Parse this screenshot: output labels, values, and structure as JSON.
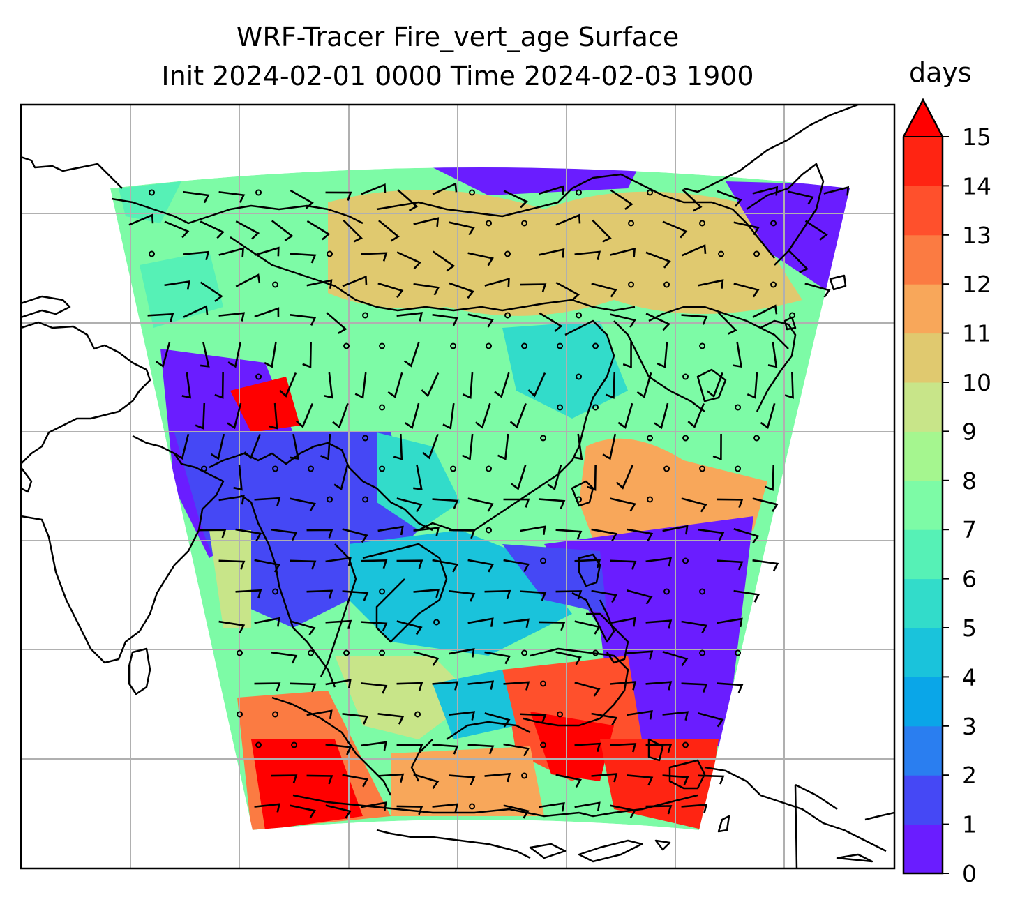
{
  "title_line1": "WRF-Tracer Fire_vert_age Surface",
  "title_line2": "Init 2024-02-01 0000 Time 2024-02-03 1900",
  "colorbar": {
    "units": "days",
    "min": 0,
    "max": 15,
    "extend": "max",
    "ticks": [
      "0",
      "1",
      "2",
      "3",
      "4",
      "5",
      "6",
      "7",
      "8",
      "9",
      "10",
      "11",
      "12",
      "13",
      "14",
      "15"
    ],
    "colors": [
      "#6a1dff",
      "#4548f5",
      "#2a7ef0",
      "#0aa6e8",
      "#1ac3db",
      "#32dcca",
      "#56f1b6",
      "#7dfba6",
      "#a5f68f",
      "#c8e589",
      "#e0c96f",
      "#f8a75a",
      "#fb7b42",
      "#ff502c",
      "#ff2412",
      "#ff0000"
    ],
    "over_color": "#ff0000"
  },
  "map": {
    "gridlines": true,
    "grid_color": "#b0b0b0",
    "coastline_color": "#000000",
    "wind_barbs": true
  }
}
